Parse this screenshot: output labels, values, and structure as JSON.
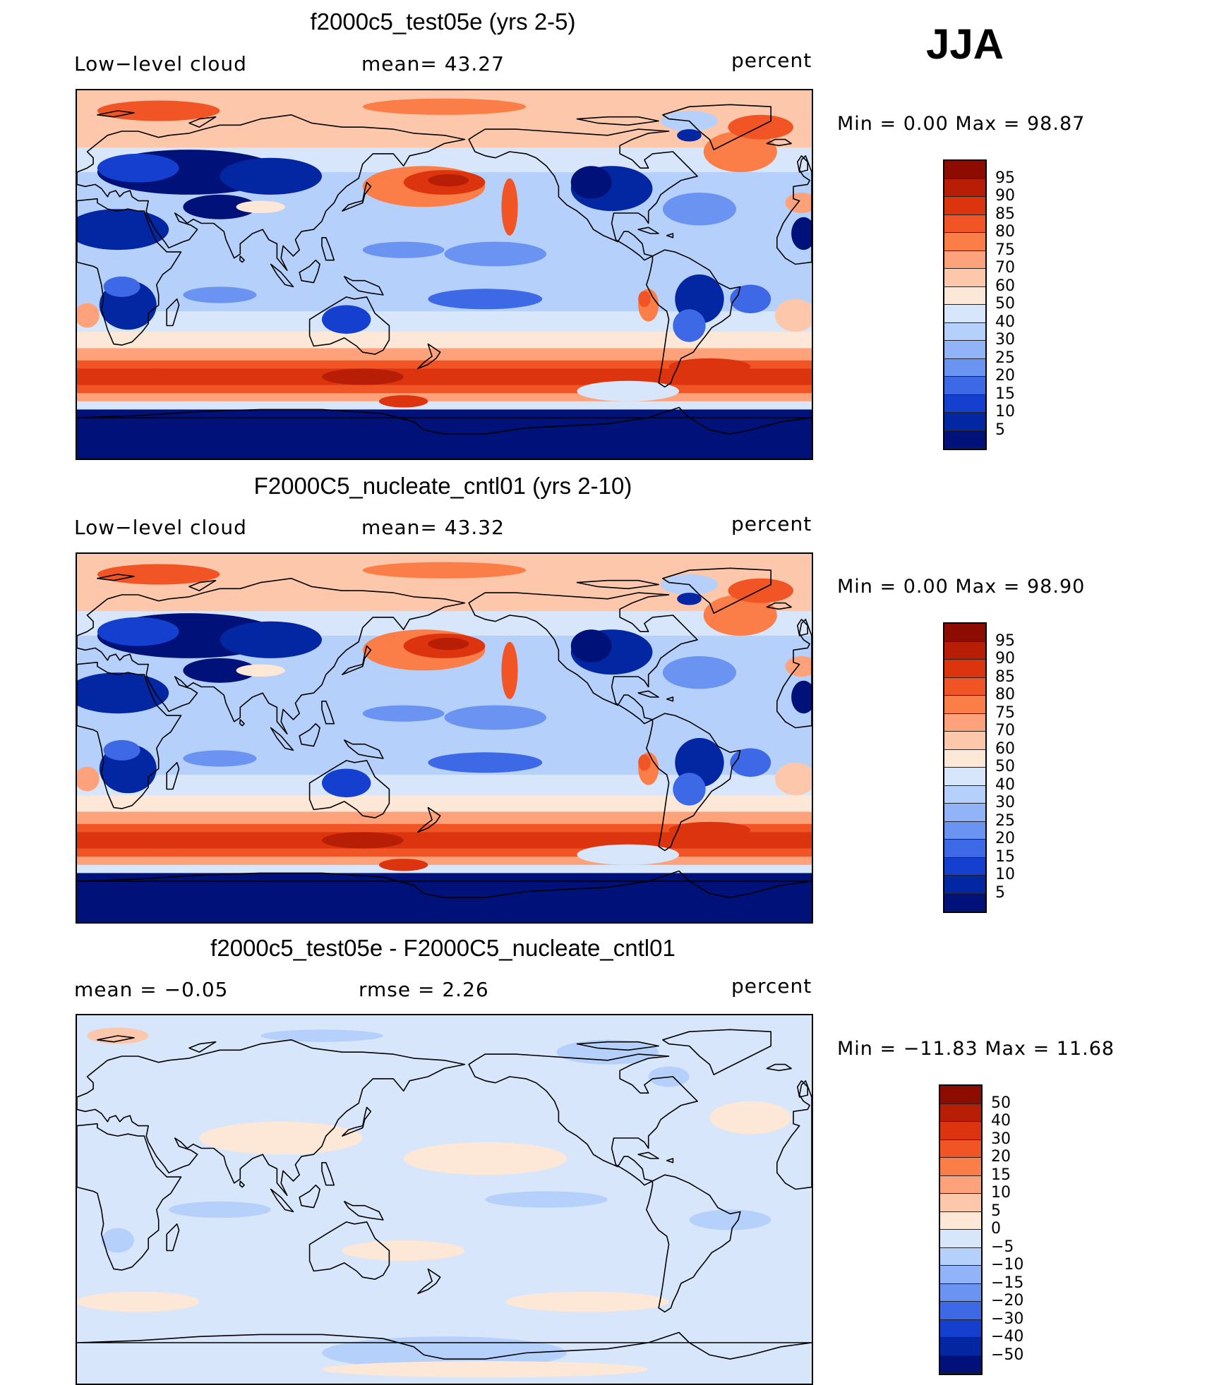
{
  "season": "JJA",
  "panels": [
    {
      "title": "f2000c5_test05e (yrs 2-5)",
      "left_label": "Low−level cloud",
      "mid_label": "mean=   43.27",
      "units": "percent",
      "min_max": "Min  =     0.00  Max  =    98.87",
      "field": "Low-level cloud fraction, JJA mean",
      "mean": 43.27,
      "min": 0.0,
      "max": 98.87,
      "colorbar": {
        "levels": [
          "95",
          "90",
          "85",
          "80",
          "75",
          "70",
          "60",
          "50",
          "40",
          "30",
          "25",
          "20",
          "15",
          "10",
          "5"
        ],
        "colors": [
          "#8c0c00",
          "#b81e05",
          "#dd3410",
          "#f25525",
          "#fb7d47",
          "#fda27a",
          "#fdc7ab",
          "#fde7d6",
          "#d7e6fb",
          "#b5d0fa",
          "#90b4f7",
          "#6b93f1",
          "#3d68e6",
          "#1540cf",
          "#0326a3",
          "#00127a"
        ]
      }
    },
    {
      "title": "F2000C5_nucleate_cntl01 (yrs 2-10)",
      "left_label": "Low−level cloud",
      "mid_label": "mean=   43.32",
      "units": "percent",
      "min_max": "Min  =     0.00  Max  =    98.90",
      "field": "Low-level cloud fraction, JJA mean",
      "mean": 43.32,
      "min": 0.0,
      "max": 98.9,
      "colorbar": {
        "levels": [
          "95",
          "90",
          "85",
          "80",
          "75",
          "70",
          "60",
          "50",
          "40",
          "30",
          "25",
          "20",
          "15",
          "10",
          "5"
        ],
        "colors": [
          "#8c0c00",
          "#b81e05",
          "#dd3410",
          "#f25525",
          "#fb7d47",
          "#fda27a",
          "#fdc7ab",
          "#fde7d6",
          "#d7e6fb",
          "#b5d0fa",
          "#90b4f7",
          "#6b93f1",
          "#3d68e6",
          "#1540cf",
          "#0326a3",
          "#00127a"
        ]
      }
    },
    {
      "title": "f2000c5_test05e - F2000C5_nucleate_cntl01",
      "left_label": "mean  =    −0.05",
      "mid_label": "rmse  =     2.26",
      "units": "percent",
      "min_max": "Min  = −11.83  Max  =    11.68",
      "field": "Difference (test minus control)",
      "mean": -0.05,
      "rmse": 2.26,
      "min": -11.83,
      "max": 11.68,
      "colorbar": {
        "levels": [
          "50",
          "40",
          "30",
          "20",
          "15",
          "10",
          "5",
          "0",
          "−5",
          "−10",
          "−15",
          "−20",
          "−30",
          "−40",
          "−50"
        ],
        "colors": [
          "#8c0c00",
          "#b81e05",
          "#dd3410",
          "#f25525",
          "#fb7d47",
          "#fda27a",
          "#fdc7ab",
          "#fde7d6",
          "#d7e6fb",
          "#b5d0fa",
          "#90b4f7",
          "#6b93f1",
          "#3d68e6",
          "#1540cf",
          "#0326a3",
          "#00127a"
        ]
      }
    }
  ]
}
